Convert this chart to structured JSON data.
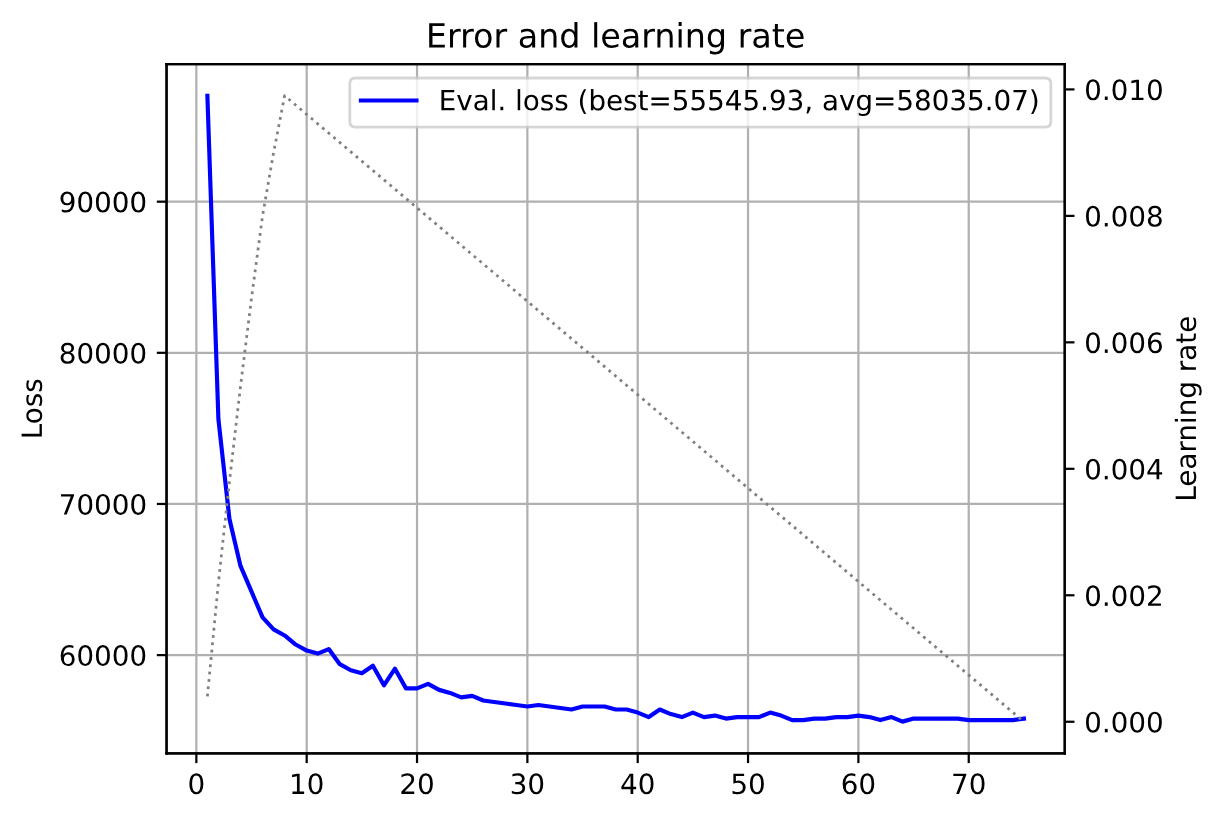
{
  "chart_data": {
    "type": "line",
    "title": "Error and learning rate",
    "ylabel": "Loss",
    "y2label": "Learning rate",
    "x": [
      1,
      2,
      3,
      4,
      5,
      6,
      7,
      8,
      9,
      10,
      11,
      12,
      13,
      14,
      15,
      16,
      17,
      18,
      19,
      20,
      21,
      22,
      23,
      24,
      25,
      26,
      27,
      28,
      29,
      30,
      31,
      32,
      33,
      34,
      35,
      36,
      37,
      38,
      39,
      40,
      41,
      42,
      43,
      44,
      45,
      46,
      47,
      48,
      49,
      50,
      51,
      52,
      53,
      54,
      55,
      56,
      57,
      58,
      59,
      60,
      61,
      62,
      63,
      64,
      65,
      66,
      67,
      68,
      69,
      70,
      71,
      72,
      73,
      74,
      75
    ],
    "series": [
      {
        "name": "Eval. loss (best=55545.93, avg=58035.07)",
        "color": "#0000ff",
        "line_style": "solid",
        "values": [
          97000,
          75600,
          69000,
          65900,
          64200,
          62500,
          61700,
          61300,
          60700,
          60300,
          60100,
          60400,
          59400,
          59000,
          58800,
          59300,
          58000,
          59100,
          57800,
          57800,
          58100,
          57700,
          57500,
          57200,
          57300,
          57000,
          56900,
          56800,
          56700,
          56600,
          56700,
          56600,
          56500,
          56400,
          56600,
          56600,
          56600,
          56400,
          56400,
          56200,
          55900,
          56400,
          56100,
          55900,
          56200,
          55900,
          56000,
          55800,
          55900,
          55900,
          55900,
          56200,
          56000,
          55700,
          55700,
          55800,
          55800,
          55900,
          55900,
          56000,
          55900,
          55700,
          55900,
          55600,
          55800,
          55800,
          55800,
          55800,
          55800,
          55700,
          55700,
          55700,
          55700,
          55700,
          55800
        ]
      },
      {
        "axis": "y2",
        "color": "#808080",
        "line_style": "dotted",
        "x": [
          1,
          2,
          3,
          4,
          5,
          6,
          7,
          8,
          75
        ],
        "values": [
          0.0004,
          0.0022,
          0.0038,
          0.0053,
          0.0067,
          0.008,
          0.009,
          0.0099,
          0.0
        ]
      }
    ],
    "xlim": [
      -2.7,
      78.7
    ],
    "xticks": [
      0,
      10,
      20,
      30,
      40,
      50,
      60,
      70
    ],
    "ylim": [
      53500,
      99100
    ],
    "yticks": [
      60000,
      70000,
      80000,
      90000
    ],
    "y2lim": [
      -0.0005,
      0.0104
    ],
    "y2ticks": [
      {
        "value": 0.0,
        "label": "0.000"
      },
      {
        "value": 0.002,
        "label": "0.002"
      },
      {
        "value": 0.004,
        "label": "0.004"
      },
      {
        "value": 0.006,
        "label": "0.006"
      },
      {
        "value": 0.008,
        "label": "0.008"
      },
      {
        "value": 0.01,
        "label": "0.010"
      }
    ],
    "grid": true,
    "legend": "top right"
  }
}
